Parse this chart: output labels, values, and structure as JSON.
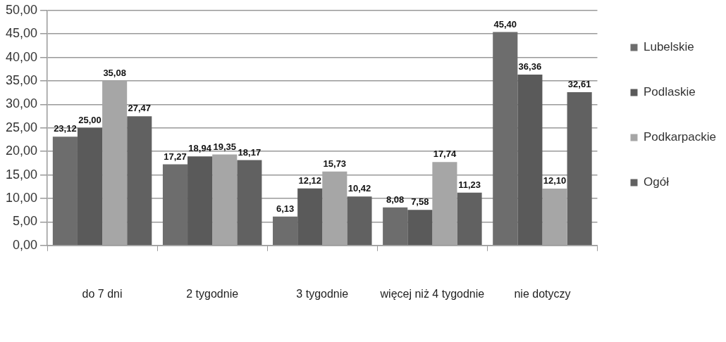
{
  "chart_data": {
    "type": "bar",
    "categories": [
      "do 7 dni",
      "2 tygodnie",
      "3 tygodnie",
      "więcej niż 4 tygodnie",
      "nie dotyczy"
    ],
    "series": [
      {
        "name": "Lubelskie",
        "color": "#6d6d6d",
        "values": [
          23.12,
          17.27,
          6.13,
          8.08,
          45.4
        ],
        "value_labels": [
          "23,12",
          "17,27",
          "6,13",
          "8,08",
          "45,40"
        ]
      },
      {
        "name": "Podlaskie",
        "color": "#5a5a5a",
        "values": [
          25.0,
          18.94,
          12.12,
          7.58,
          36.36
        ],
        "value_labels": [
          "25,00",
          "18,94",
          "12,12",
          "7,58",
          "36,36"
        ]
      },
      {
        "name": "Podkarpackie",
        "color": "#a6a6a6",
        "values": [
          35.08,
          19.35,
          15.73,
          17.74,
          12.1
        ],
        "value_labels": [
          "35,08",
          "19,35",
          "15,73",
          "17,74",
          "12,10"
        ]
      },
      {
        "name": "Ogół",
        "color": "#616161",
        "values": [
          27.47,
          18.17,
          10.42,
          11.23,
          32.61
        ],
        "value_labels": [
          "27,47",
          "18,17",
          "10,42",
          "11,23",
          "32,61"
        ]
      }
    ],
    "ylim": [
      0,
      50
    ],
    "yticks": [
      {
        "value": 0,
        "label": "0,00"
      },
      {
        "value": 5,
        "label": "5,00"
      },
      {
        "value": 10,
        "label": "10,00"
      },
      {
        "value": 15,
        "label": "15,00"
      },
      {
        "value": 20,
        "label": "20,00"
      },
      {
        "value": 25,
        "label": "25,00"
      },
      {
        "value": 30,
        "label": "30,00"
      },
      {
        "value": 35,
        "label": "35,00"
      },
      {
        "value": 40,
        "label": "40,00"
      },
      {
        "value": 45,
        "label": "45,00"
      },
      {
        "value": 50,
        "label": "50,00"
      }
    ],
    "grid": "y",
    "legend": "right"
  }
}
